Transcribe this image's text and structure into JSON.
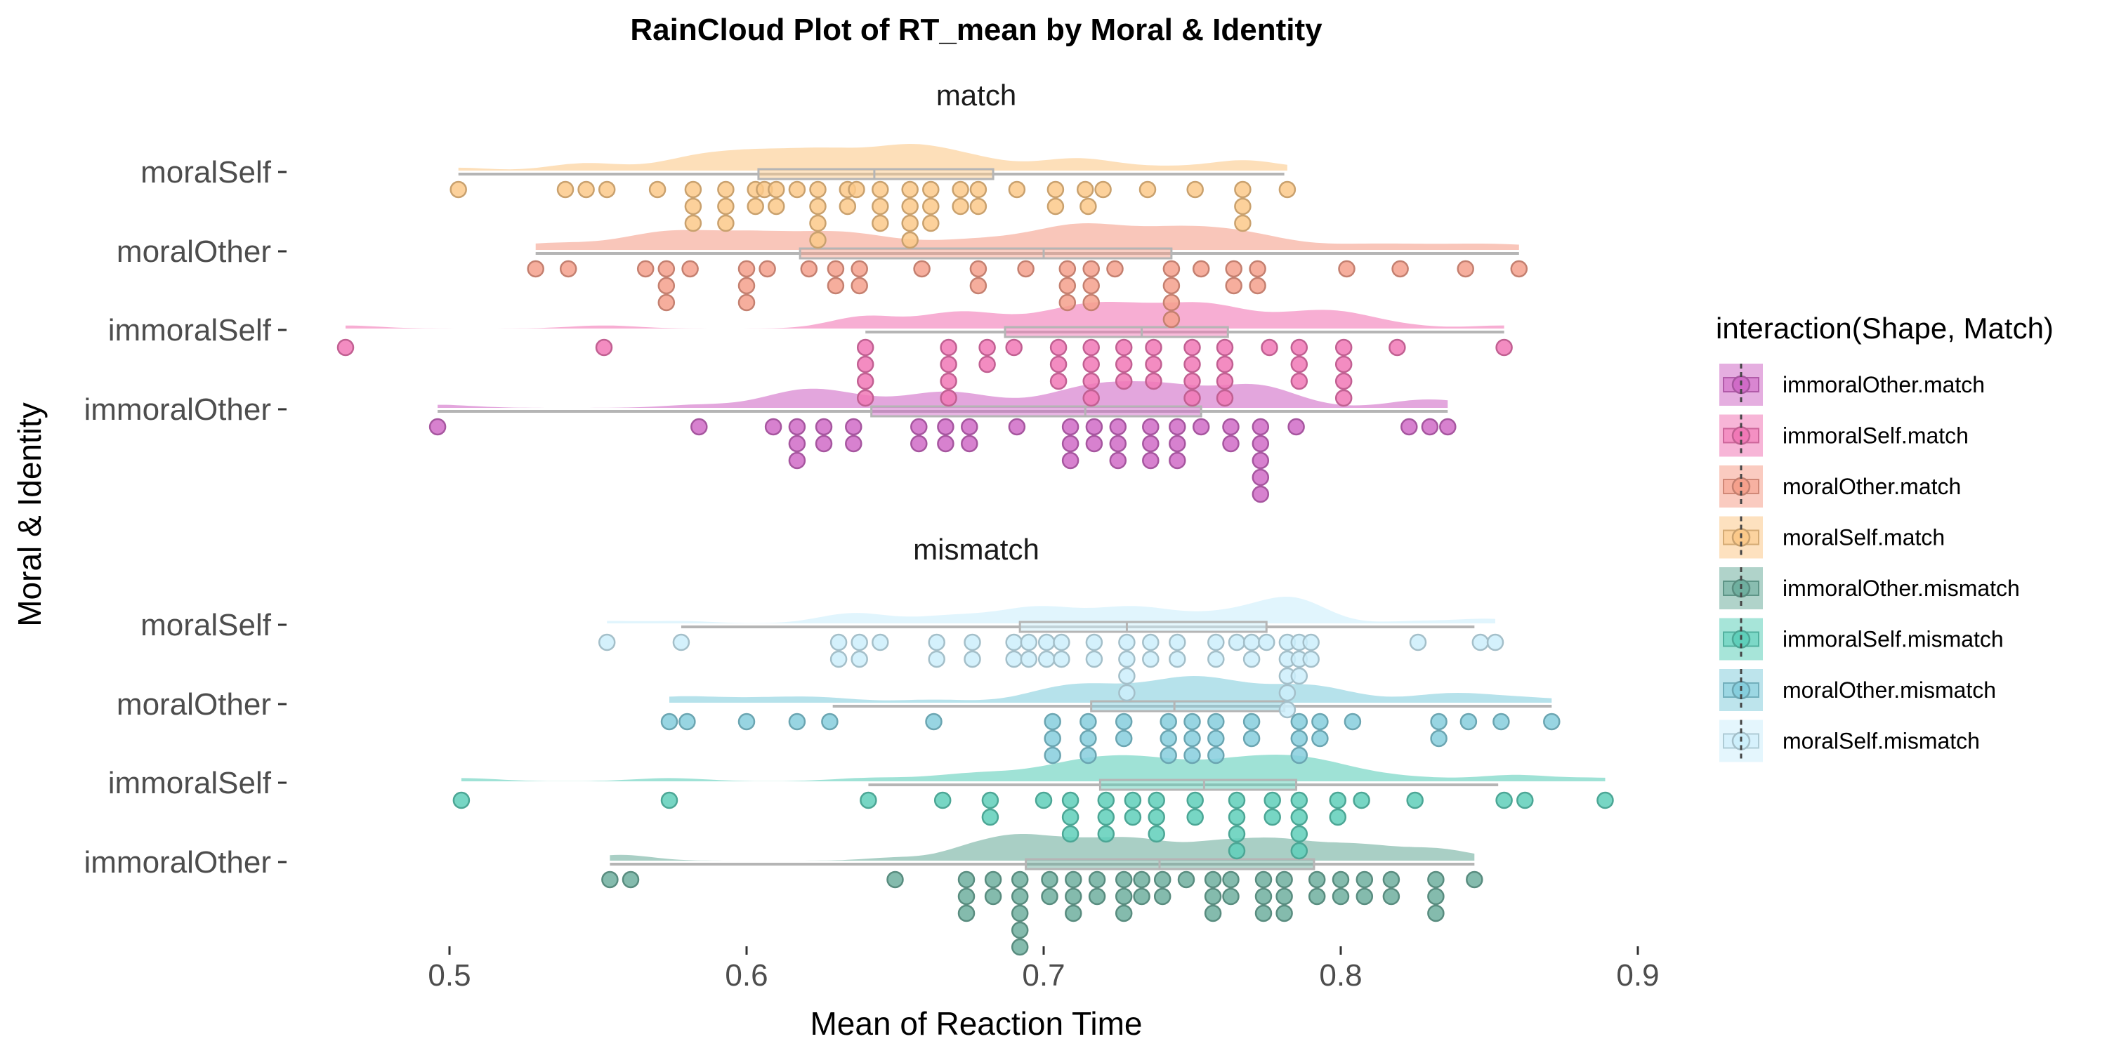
{
  "chart_data": {
    "type": "raincloud",
    "title": "RainCloud Plot of RT_mean by Moral & Identity",
    "xlabel": "Mean of Reaction Time",
    "ylabel": "Moral & Identity",
    "xlim": [
      0.47,
      0.9
    ],
    "xticks": [
      0.5,
      0.6,
      0.7,
      0.8,
      0.9
    ],
    "xtick_labels": [
      "0.5",
      "0.6",
      "0.7",
      "0.8",
      "0.9"
    ],
    "grid": false,
    "legend": {
      "title": "interaction(Shape, Match)",
      "placement": "right",
      "items": [
        {
          "label": "immoralOther.match",
          "color": "#D06BC7"
        },
        {
          "label": "immoralSelf.match",
          "color": "#F178B6"
        },
        {
          "label": "moralOther.match",
          "color": "#F5A08C"
        },
        {
          "label": "moralSelf.match",
          "color": "#FBC98A"
        },
        {
          "label": "immoralOther.mismatch",
          "color": "#6FAF9F"
        },
        {
          "label": "immoralSelf.mismatch",
          "color": "#5FCFBA"
        },
        {
          "label": "moralOther.mismatch",
          "color": "#86CEDD"
        },
        {
          "label": "moralSelf.mismatch",
          "color": "#CDEFFB"
        }
      ]
    },
    "panels": [
      {
        "name": "match",
        "groups": [
          {
            "label": "moralSelf",
            "legend_index": 3,
            "color": "#FBC98A",
            "box": {
              "min": 0.503,
              "q1": 0.604,
              "median": 0.643,
              "q3": 0.683,
              "max": 0.781
            },
            "points": [
              0.503,
              0.539,
              0.546,
              0.553,
              0.57,
              0.582,
              0.582,
              0.582,
              0.593,
              0.593,
              0.593,
              0.603,
              0.603,
              0.606,
              0.61,
              0.61,
              0.617,
              0.624,
              0.624,
              0.624,
              0.624,
              0.634,
              0.634,
              0.637,
              0.645,
              0.645,
              0.645,
              0.655,
              0.655,
              0.655,
              0.655,
              0.662,
              0.662,
              0.662,
              0.672,
              0.672,
              0.678,
              0.678,
              0.691,
              0.704,
              0.704,
              0.714,
              0.715,
              0.72,
              0.735,
              0.751,
              0.767,
              0.767,
              0.767,
              0.782
            ]
          },
          {
            "label": "moralOther",
            "legend_index": 2,
            "color": "#F5A08C",
            "box": {
              "min": 0.529,
              "q1": 0.618,
              "median": 0.7,
              "q3": 0.743,
              "max": 0.86
            },
            "points": [
              0.529,
              0.54,
              0.566,
              0.573,
              0.573,
              0.573,
              0.581,
              0.6,
              0.6,
              0.6,
              0.607,
              0.621,
              0.63,
              0.63,
              0.638,
              0.638,
              0.659,
              0.678,
              0.678,
              0.694,
              0.708,
              0.708,
              0.708,
              0.716,
              0.716,
              0.716,
              0.724,
              0.743,
              0.743,
              0.743,
              0.743,
              0.753,
              0.764,
              0.764,
              0.772,
              0.772,
              0.802,
              0.82,
              0.842,
              0.86
            ]
          },
          {
            "label": "immoralSelf",
            "legend_index": 1,
            "color": "#F178B6",
            "box": {
              "min": 0.64,
              "q1": 0.687,
              "median": 0.733,
              "q3": 0.762,
              "max": 0.855
            },
            "points": [
              0.465,
              0.552,
              0.64,
              0.64,
              0.64,
              0.64,
              0.668,
              0.668,
              0.668,
              0.668,
              0.681,
              0.681,
              0.69,
              0.705,
              0.705,
              0.705,
              0.716,
              0.716,
              0.716,
              0.716,
              0.727,
              0.727,
              0.727,
              0.737,
              0.737,
              0.737,
              0.75,
              0.75,
              0.75,
              0.75,
              0.761,
              0.761,
              0.761,
              0.761,
              0.776,
              0.786,
              0.786,
              0.786,
              0.801,
              0.801,
              0.801,
              0.801,
              0.819,
              0.855
            ]
          },
          {
            "label": "immoralOther",
            "legend_index": 0,
            "color": "#D06BC7",
            "box": {
              "min": 0.496,
              "q1": 0.642,
              "median": 0.714,
              "q3": 0.753,
              "max": 0.836
            },
            "points": [
              0.496,
              0.584,
              0.609,
              0.617,
              0.617,
              0.617,
              0.626,
              0.626,
              0.636,
              0.636,
              0.658,
              0.658,
              0.667,
              0.667,
              0.675,
              0.675,
              0.691,
              0.709,
              0.709,
              0.709,
              0.717,
              0.717,
              0.725,
              0.725,
              0.725,
              0.736,
              0.736,
              0.736,
              0.745,
              0.745,
              0.745,
              0.753,
              0.763,
              0.763,
              0.773,
              0.773,
              0.773,
              0.773,
              0.773,
              0.785,
              0.823,
              0.83,
              0.836
            ]
          }
        ]
      },
      {
        "name": "mismatch",
        "groups": [
          {
            "label": "moralSelf",
            "legend_index": 7,
            "color": "#CDEFFB",
            "box": {
              "min": 0.578,
              "q1": 0.692,
              "median": 0.728,
              "q3": 0.775,
              "max": 0.845
            },
            "points": [
              0.553,
              0.578,
              0.631,
              0.631,
              0.638,
              0.638,
              0.645,
              0.664,
              0.664,
              0.676,
              0.676,
              0.69,
              0.69,
              0.695,
              0.695,
              0.701,
              0.701,
              0.706,
              0.706,
              0.717,
              0.717,
              0.728,
              0.728,
              0.728,
              0.728,
              0.736,
              0.736,
              0.745,
              0.745,
              0.758,
              0.758,
              0.765,
              0.77,
              0.77,
              0.775,
              0.782,
              0.782,
              0.782,
              0.782,
              0.782,
              0.786,
              0.786,
              0.786,
              0.79,
              0.79,
              0.826,
              0.847,
              0.852
            ]
          },
          {
            "label": "moralOther",
            "legend_index": 6,
            "color": "#86CEDD",
            "box": {
              "min": 0.629,
              "q1": 0.716,
              "median": 0.744,
              "q3": 0.781,
              "max": 0.871
            },
            "points": [
              0.574,
              0.58,
              0.6,
              0.617,
              0.628,
              0.663,
              0.703,
              0.703,
              0.703,
              0.715,
              0.715,
              0.715,
              0.727,
              0.727,
              0.742,
              0.742,
              0.742,
              0.75,
              0.75,
              0.75,
              0.758,
              0.758,
              0.758,
              0.77,
              0.77,
              0.786,
              0.786,
              0.786,
              0.793,
              0.793,
              0.804,
              0.833,
              0.833,
              0.843,
              0.854,
              0.871
            ]
          },
          {
            "label": "immoralSelf",
            "legend_index": 5,
            "color": "#5FCFBA",
            "box": {
              "min": 0.641,
              "q1": 0.719,
              "median": 0.754,
              "q3": 0.785,
              "max": 0.853
            },
            "points": [
              0.504,
              0.574,
              0.641,
              0.666,
              0.682,
              0.682,
              0.7,
              0.709,
              0.709,
              0.709,
              0.721,
              0.721,
              0.721,
              0.73,
              0.73,
              0.738,
              0.738,
              0.738,
              0.751,
              0.751,
              0.765,
              0.765,
              0.765,
              0.765,
              0.777,
              0.777,
              0.786,
              0.786,
              0.786,
              0.786,
              0.799,
              0.799,
              0.807,
              0.825,
              0.855,
              0.862,
              0.889
            ]
          },
          {
            "label": "immoralOther",
            "legend_index": 4,
            "color": "#6FAF9F",
            "box": {
              "min": 0.554,
              "q1": 0.694,
              "median": 0.739,
              "q3": 0.791,
              "max": 0.845
            },
            "points": [
              0.554,
              0.561,
              0.65,
              0.674,
              0.674,
              0.674,
              0.683,
              0.683,
              0.692,
              0.692,
              0.692,
              0.692,
              0.692,
              0.702,
              0.702,
              0.71,
              0.71,
              0.71,
              0.718,
              0.718,
              0.727,
              0.727,
              0.727,
              0.733,
              0.733,
              0.74,
              0.74,
              0.748,
              0.757,
              0.757,
              0.757,
              0.763,
              0.763,
              0.774,
              0.774,
              0.774,
              0.781,
              0.781,
              0.781,
              0.792,
              0.792,
              0.8,
              0.8,
              0.808,
              0.808,
              0.817,
              0.817,
              0.832,
              0.832,
              0.832,
              0.845
            ]
          }
        ]
      }
    ]
  }
}
